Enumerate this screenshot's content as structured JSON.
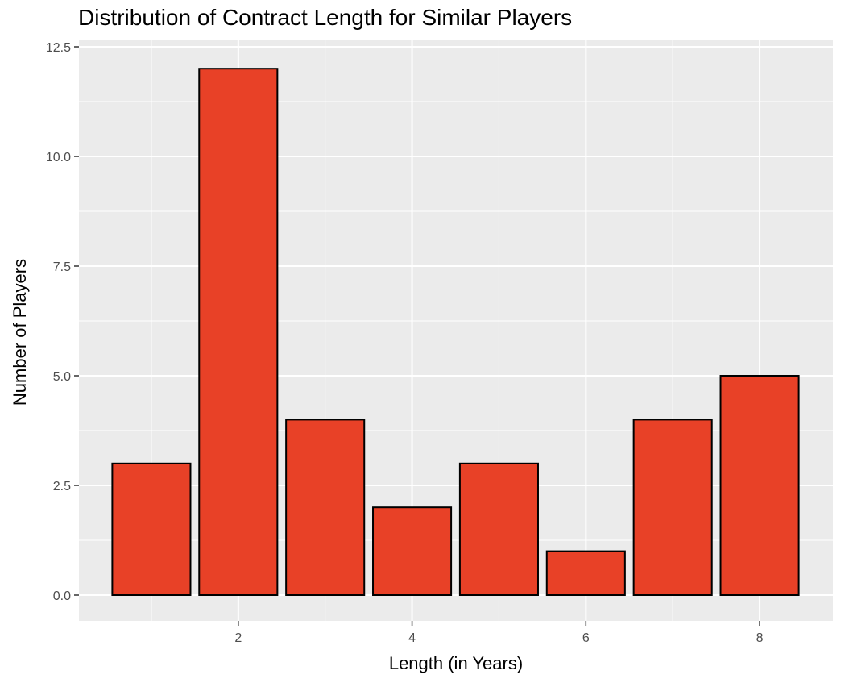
{
  "chart_data": {
    "type": "bar",
    "title": "Distribution of Contract Length for Similar Players",
    "xlabel": "Length (in Years)",
    "ylabel": "Number of Players",
    "x": [
      1,
      2,
      3,
      4,
      5,
      6,
      7,
      8
    ],
    "values": [
      3,
      12,
      4,
      2,
      3,
      1,
      4,
      5
    ],
    "xlim": [
      0.5,
      8.5
    ],
    "ylim": [
      0,
      12.5
    ],
    "x_ticks": [
      2,
      4,
      6,
      8
    ],
    "x_tick_labels": [
      "2",
      "4",
      "6",
      "8"
    ],
    "y_ticks": [
      0,
      2.5,
      5,
      7.5,
      10,
      12.5
    ],
    "y_tick_labels": [
      "0.0",
      "2.5",
      "5.0",
      "7.5",
      "10.0",
      "12.5"
    ],
    "grid": true,
    "legend": "none",
    "colors": {
      "bar_fill": "#E84127",
      "bar_outline": "#000000",
      "panel_background": "#EBEBEB",
      "grid_line": "#FFFFFF"
    }
  }
}
